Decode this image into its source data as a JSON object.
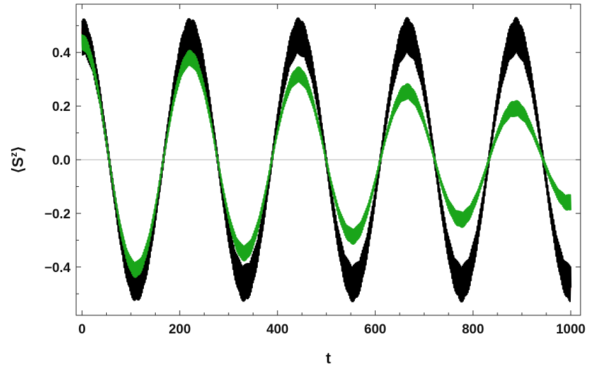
{
  "chart_data": {
    "type": "line",
    "xlabel": "t",
    "ylabel": "⟨S",
    "ylabel_sup": "z",
    "ylabel_close": "⟩",
    "xlim": [
      -12,
      1020
    ],
    "ylim": [
      -0.58,
      0.58
    ],
    "x_ticks": [
      0,
      200,
      400,
      600,
      800,
      1000
    ],
    "x_tick_labels": [
      "0",
      "200",
      "400",
      "600",
      "800",
      "1000"
    ],
    "y_ticks": [
      -0.4,
      -0.2,
      0.0,
      0.2,
      0.4
    ],
    "y_tick_labels": [
      "−0.4",
      "−0.2",
      "0.0",
      "0.2",
      "0.4"
    ],
    "zero_line": true,
    "grid": false,
    "series": [
      {
        "color": "#e00000",
        "period": 222,
        "amplitude_start": 0.47,
        "amplitude_end": 0.47,
        "fast_oscillation_amplitude": 0.02,
        "x": [
          0,
          1000
        ]
      },
      {
        "color": "#000000",
        "period": 222,
        "amplitude_start": 0.46,
        "amplitude_end": 0.46,
        "fast_oscillation_amplitude": 0.07,
        "x": [
          0,
          1000
        ]
      },
      {
        "color": "#1aa51a",
        "period": 222,
        "amplitude_start": 0.44,
        "amplitude_end": 0.16,
        "fast_oscillation_amplitude": 0.03,
        "x": [
          0,
          1000
        ]
      }
    ]
  }
}
